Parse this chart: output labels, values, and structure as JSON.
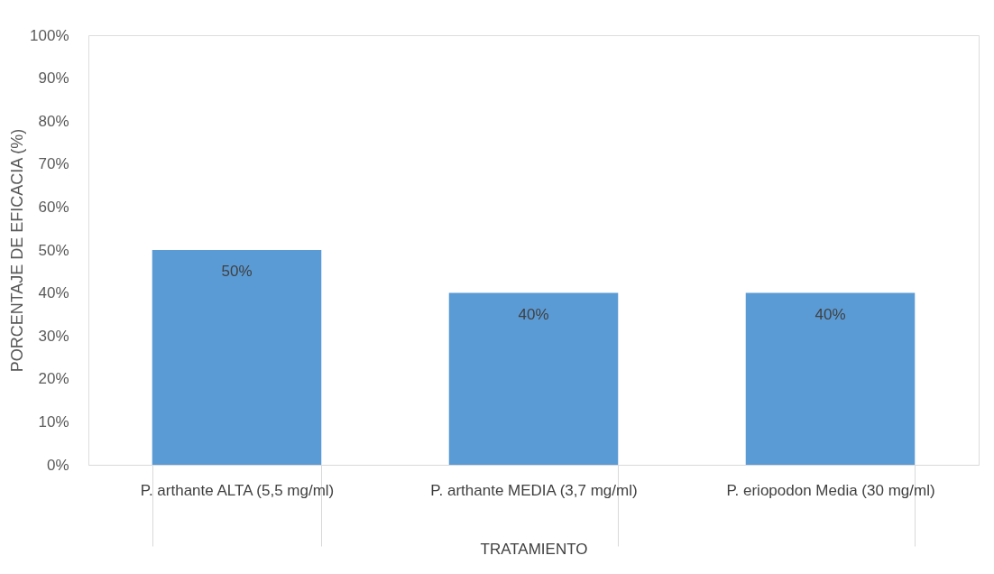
{
  "chart_data": {
    "type": "bar",
    "xlabel": "TRATAMIENTO",
    "ylabel": "PORCENTAJE DE EFICACIA (%)",
    "categories": [
      "P. arthante ALTA (5,5 mg/ml)",
      "P. arthante MEDIA (3,7 mg/ml)",
      "P. eriopodon Media (30 mg/ml)"
    ],
    "values": [
      50,
      40,
      40
    ],
    "value_labels": [
      "50%",
      "40%",
      "40%"
    ],
    "color": "#5b9bd5",
    "ylim": [
      0,
      100
    ],
    "yticks": [
      {
        "value": 0,
        "label": "0%"
      },
      {
        "value": 10,
        "label": "10%"
      },
      {
        "value": 20,
        "label": "20%"
      },
      {
        "value": 30,
        "label": "30%"
      },
      {
        "value": 40,
        "label": "40%"
      },
      {
        "value": 50,
        "label": "50%"
      },
      {
        "value": 60,
        "label": "60%"
      },
      {
        "value": 70,
        "label": "70%"
      },
      {
        "value": 80,
        "label": "80%"
      },
      {
        "value": 90,
        "label": "90%"
      },
      {
        "value": 100,
        "label": "100%"
      }
    ],
    "grid": false
  }
}
